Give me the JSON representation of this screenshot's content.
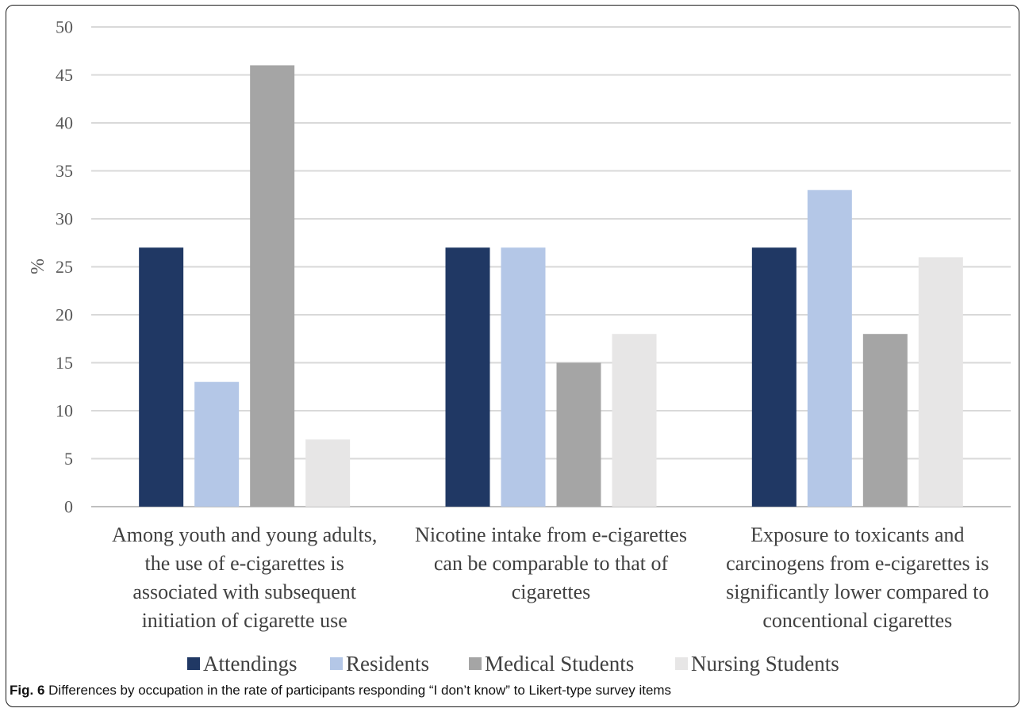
{
  "caption": {
    "label": "Fig. 6",
    "text": "Differences by occupation in the rate of participants responding “I don’t know” to Likert-type survey items"
  },
  "chart_data": {
    "type": "bar",
    "title": "",
    "xlabel": "",
    "ylabel": "%",
    "ylim": [
      0,
      50
    ],
    "yticks": [
      0,
      5,
      10,
      15,
      20,
      25,
      30,
      35,
      40,
      45,
      50
    ],
    "grid": true,
    "legend_position": "bottom",
    "categories": [
      [
        "Among youth and young adults,",
        "the use of e-cigarettes is",
        "associated with subsequent",
        "initiation of cigarette use"
      ],
      [
        "Nicotine intake from e-cigarettes",
        "can be comparable to that of",
        "cigarettes"
      ],
      [
        "Exposure to toxicants and",
        "carcinogens from e-cigarettes is",
        "significantly lower compared to",
        "concentional cigarettes"
      ]
    ],
    "series": [
      {
        "name": "Attendings",
        "color": "#203864",
        "values": [
          27,
          27,
          27
        ]
      },
      {
        "name": "Residents",
        "color": "#b4c7e7",
        "values": [
          13,
          27,
          33
        ]
      },
      {
        "name": "Medical Students",
        "color": "#a5a5a5",
        "values": [
          46,
          15,
          18
        ]
      },
      {
        "name": "Nursing Students",
        "color": "#e7e6e6",
        "values": [
          7,
          18,
          26
        ]
      }
    ]
  }
}
